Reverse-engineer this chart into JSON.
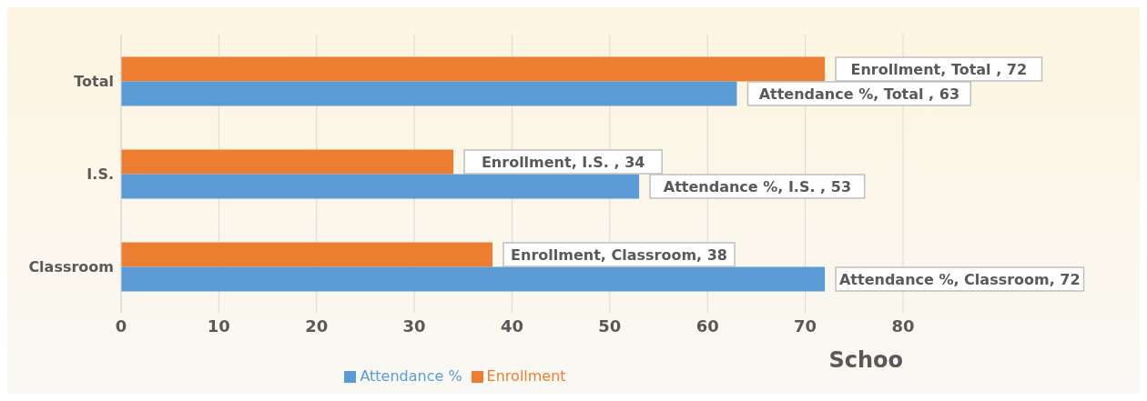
{
  "chart_data": {
    "type": "bar",
    "orientation": "horizontal",
    "xlabel": "Schoo",
    "categories": [
      "Total",
      "I.S.",
      "Classroom"
    ],
    "series": [
      {
        "name": "Enrollment",
        "color": "#ed7d31",
        "values": [
          72,
          34,
          38
        ],
        "value_labels": [
          "Enrollment, Total , 72",
          "Enrollment, I.S. , 34",
          "Enrollment, Classroom, 38"
        ]
      },
      {
        "name": "Attendance %",
        "color": "#5b9bd5",
        "values": [
          63,
          53,
          72
        ],
        "value_labels": [
          "Attendance %, Total , 63",
          "Attendance %, I.S. , 53",
          "Attendance %, Classroom, 72"
        ]
      }
    ],
    "xlim": [
      0,
      80
    ],
    "xticks": [
      0,
      10,
      20,
      30,
      40,
      50,
      60,
      70,
      80
    ],
    "grid": "x",
    "legend": "bottom"
  }
}
